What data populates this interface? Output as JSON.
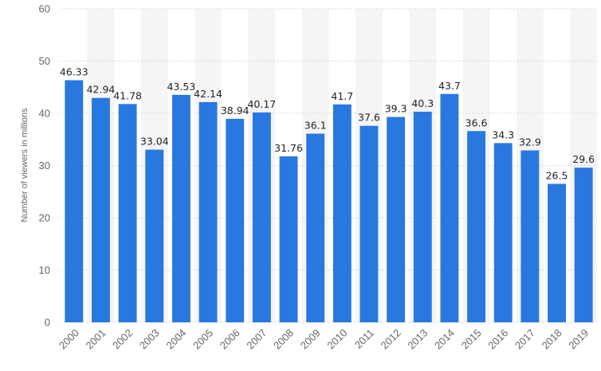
{
  "chart_data": {
    "type": "bar",
    "ylabel": "Number of viewers in millions",
    "ylim": [
      0,
      60
    ],
    "yticks": [
      "0",
      "10",
      "20",
      "30",
      "40",
      "50",
      "60"
    ],
    "categories": [
      "2000",
      "2001",
      "2002",
      "2003",
      "2004",
      "2005",
      "2006",
      "2007",
      "2008",
      "2009",
      "2010",
      "2011",
      "2012",
      "2013",
      "2014",
      "2015",
      "2016",
      "2017",
      "2018",
      "2019"
    ],
    "values": [
      46.33,
      42.94,
      41.78,
      33.04,
      43.53,
      42.14,
      38.94,
      40.17,
      31.76,
      36.1,
      41.7,
      37.6,
      39.3,
      40.3,
      43.7,
      36.6,
      34.3,
      32.9,
      26.5,
      29.6
    ],
    "value_labels": [
      "46.33",
      "42.94",
      "41.78",
      "33.04",
      "43.53",
      "42.14",
      "38.94",
      "40.17",
      "31.76",
      "36.1",
      "41.7",
      "37.6",
      "39.3",
      "40.3",
      "43.7",
      "36.6",
      "34.3",
      "32.9",
      "26.5",
      "29.6"
    ],
    "grid": true,
    "bar_color": "#2878e0",
    "band_color": "#f5f5f5",
    "grid_color": "#d9d9d9"
  }
}
